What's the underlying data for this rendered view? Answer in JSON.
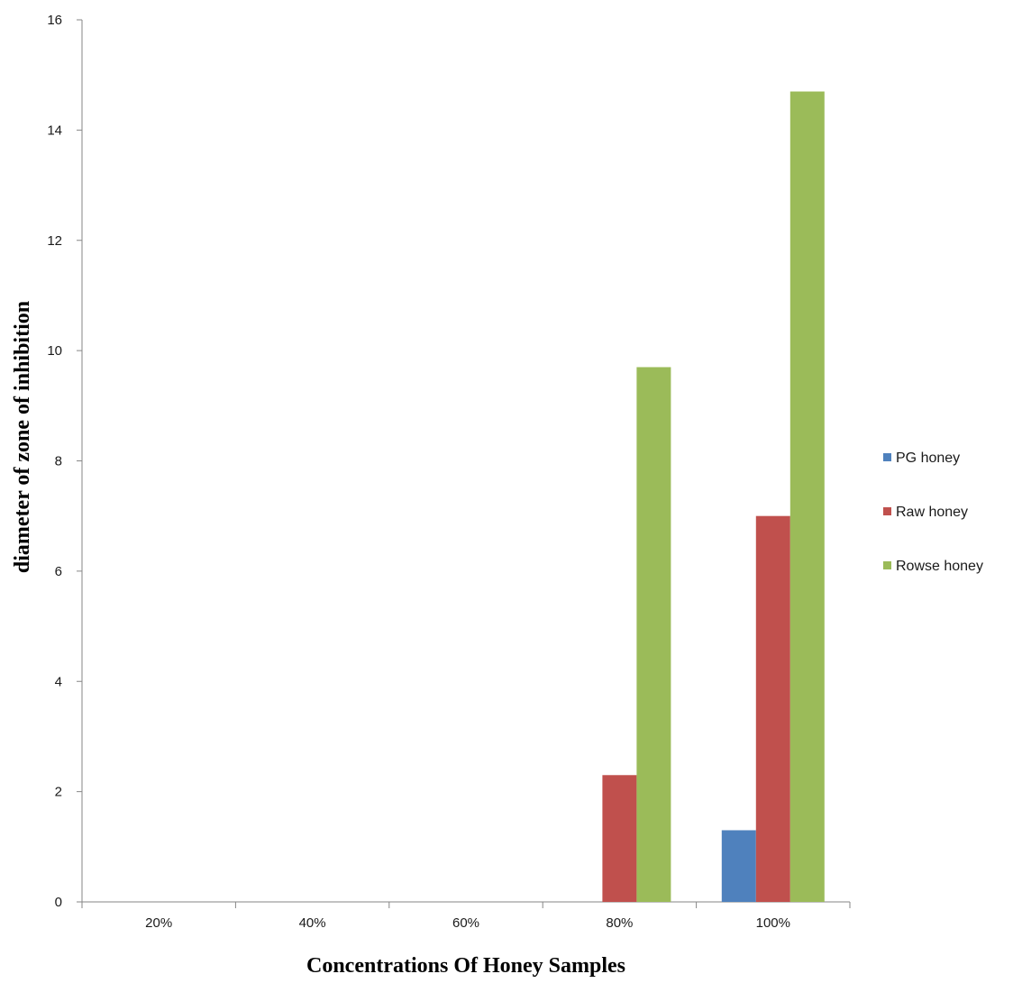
{
  "chart_data": {
    "type": "bar",
    "title": "",
    "xlabel": "Concentrations Of Honey Samples",
    "ylabel": "diameter of zone of inhibition",
    "categories": [
      "20%",
      "40%",
      "60%",
      "80%",
      "100%"
    ],
    "ylim": [
      0,
      16
    ],
    "yticks": [
      0,
      2,
      4,
      6,
      8,
      10,
      12,
      14,
      16
    ],
    "grid": false,
    "legend_position": "right",
    "series": [
      {
        "name": "PG honey",
        "color": "#4F81BD",
        "values": [
          0,
          0,
          0,
          0,
          1.3
        ]
      },
      {
        "name": "Raw honey",
        "color": "#C0504D",
        "values": [
          0,
          0,
          0,
          2.3,
          7.0
        ]
      },
      {
        "name": "Rowse honey",
        "color": "#9BBB59",
        "values": [
          0,
          0,
          0,
          9.7,
          14.7
        ]
      }
    ]
  }
}
